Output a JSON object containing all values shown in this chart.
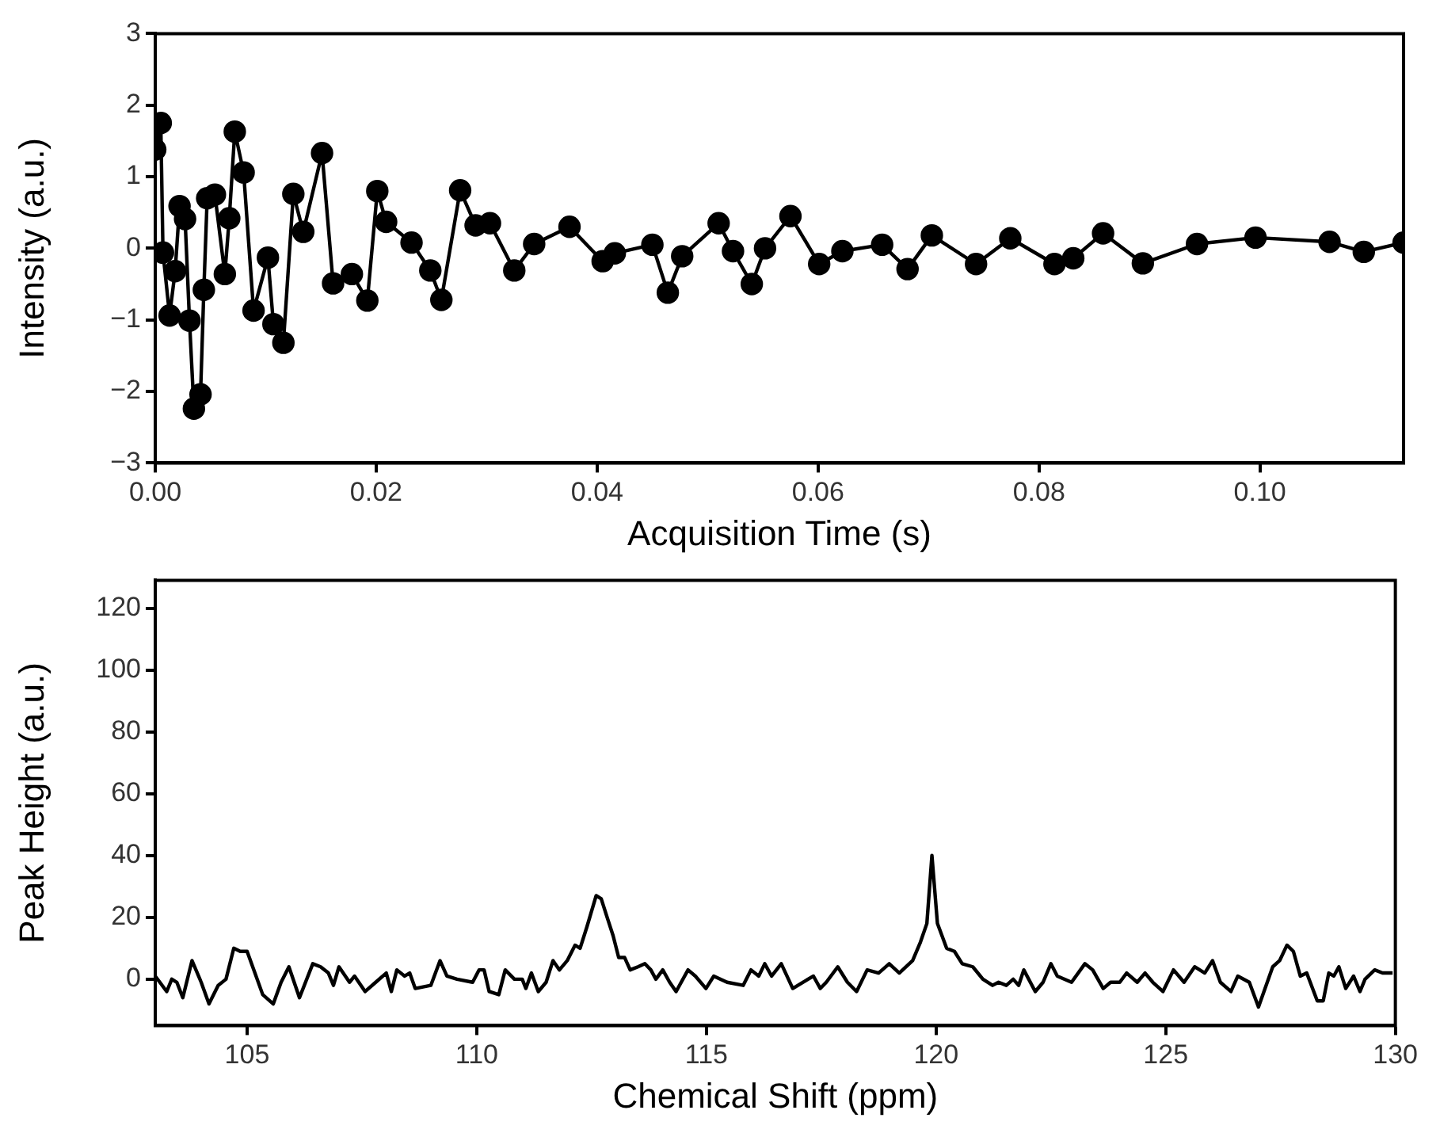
{
  "chart_data": [
    {
      "type": "line",
      "xlabel": "Acquisition Time (s)",
      "ylabel": "Intensity (a.u.)",
      "xlim": [
        0,
        0.113
      ],
      "ylim": [
        -3,
        3
      ],
      "xticks": [
        {
          "value": 0,
          "label": "0.00"
        },
        {
          "value": 0.02,
          "label": "0.02"
        },
        {
          "value": 0.04,
          "label": "0.04"
        },
        {
          "value": 0.06,
          "label": "0.06"
        },
        {
          "value": 0.08,
          "label": "0.08"
        },
        {
          "value": 0.1,
          "label": "0.10"
        }
      ],
      "yticks": [
        -3,
        -2,
        -1,
        0,
        1,
        2,
        3
      ],
      "grid": false,
      "legend": false,
      "marker": "circle",
      "line_style": "solid",
      "series": [
        {
          "color": "#000000",
          "x": [
            0,
            0.0005,
            0.0007,
            0.0013,
            0.0018,
            0.0022,
            0.0027,
            0.0031,
            0.0035,
            0.0041,
            0.0044,
            0.0047,
            0.0054,
            0.0063,
            0.0067,
            0.0072,
            0.008,
            0.0089,
            0.0102,
            0.0107,
            0.0116,
            0.0125,
            0.0134,
            0.0151,
            0.0161,
            0.0178,
            0.0192,
            0.0201,
            0.0209,
            0.0232,
            0.0249,
            0.0259,
            0.0276,
            0.029,
            0.0303,
            0.0325,
            0.0343,
            0.0375,
            0.0405,
            0.0416,
            0.045,
            0.0464,
            0.0477,
            0.051,
            0.0523,
            0.054,
            0.0552,
            0.0575,
            0.0601,
            0.0622,
            0.0658,
            0.0681,
            0.0703,
            0.0743,
            0.0774,
            0.0814,
            0.0831,
            0.0858,
            0.0894,
            0.0943,
            0.0996,
            0.1063,
            0.1094,
            0.113
          ],
          "values": [
            1.38,
            1.75,
            -0.06,
            -0.94,
            -0.32,
            0.59,
            0.41,
            -1.01,
            -2.24,
            -2.04,
            -0.58,
            0.7,
            0.75,
            -0.36,
            0.42,
            1.63,
            1.06,
            -0.87,
            -0.13,
            -1.06,
            -1.32,
            0.76,
            0.23,
            1.33,
            -0.49,
            -0.36,
            -0.73,
            0.8,
            0.37,
            0.08,
            -0.31,
            -0.72,
            0.81,
            0.32,
            0.35,
            -0.31,
            0.06,
            0.3,
            -0.18,
            -0.07,
            0.05,
            -0.62,
            -0.11,
            0.35,
            -0.04,
            -0.5,
            0,
            0.45,
            -0.22,
            -0.04,
            0.05,
            -0.29,
            0.18,
            -0.22,
            0.14,
            -0.22,
            -0.14,
            0.21,
            -0.21,
            0.06,
            0.15,
            0.09,
            -0.05,
            0.08
          ]
        }
      ]
    },
    {
      "type": "line",
      "xlabel": "Chemical Shift (ppm)",
      "ylabel": "Peak Height (a.u.)",
      "xlim": [
        103,
        130
      ],
      "ylim": [
        -15,
        129
      ],
      "xticks": [
        105,
        110,
        115,
        120,
        125,
        130
      ],
      "yticks": [
        0,
        20,
        40,
        60,
        80,
        100,
        120
      ],
      "grid": false,
      "legend": false,
      "marker": "none",
      "line_style": "solid",
      "series": [
        {
          "color": "#000000",
          "x": [
            103,
            103.1,
            103.25,
            103.36,
            103.47,
            103.6,
            103.8,
            104,
            104.17,
            104.37,
            104.54,
            104.71,
            104.85,
            105,
            105.17,
            105.34,
            105.57,
            105.74,
            105.91,
            106.14,
            106.43,
            106.6,
            106.77,
            106.88,
            107,
            107.23,
            107.34,
            107.57,
            107.8,
            108.03,
            108.14,
            108.26,
            108.43,
            108.54,
            108.66,
            109,
            109.2,
            109.35,
            109.57,
            109.91,
            110.05,
            110.16,
            110.27,
            110.48,
            110.62,
            110.82,
            110.99,
            111.07,
            111.19,
            111.34,
            111.51,
            111.66,
            111.8,
            111.97,
            112.14,
            112.25,
            112.4,
            112.6,
            112.71,
            112.86,
            112.97,
            113.09,
            113.22,
            113.34,
            113.51,
            113.66,
            113.79,
            113.9,
            114.05,
            114.2,
            114.34,
            114.6,
            114.76,
            114.99,
            115.16,
            115.45,
            115.8,
            115.97,
            116.14,
            116.27,
            116.42,
            116.63,
            116.88,
            117.1,
            117.33,
            117.48,
            117.61,
            117.86,
            118.07,
            118.27,
            118.5,
            118.75,
            118.98,
            119.2,
            119.49,
            119.66,
            119.8,
            119.91,
            120.03,
            120.23,
            120.4,
            120.57,
            120.8,
            121.02,
            121.23,
            121.36,
            121.53,
            121.68,
            121.8,
            121.91,
            122.16,
            122.33,
            122.5,
            122.64,
            122.95,
            123.24,
            123.41,
            123.64,
            123.8,
            124,
            124.15,
            124.38,
            124.55,
            124.72,
            124.94,
            125.17,
            125.4,
            125.63,
            125.85,
            126.02,
            126.19,
            126.42,
            126.57,
            126.82,
            127.02,
            127.33,
            127.48,
            127.64,
            127.78,
            127.93,
            128.07,
            128.3,
            128.43,
            128.55,
            128.66,
            128.77,
            128.92,
            129.09,
            129.23,
            129.34,
            129.55,
            129.72,
            129.94
          ],
          "values": [
            1,
            -1,
            -4,
            0,
            -1,
            -6,
            6,
            -1,
            -8,
            -2,
            0,
            10,
            9,
            9,
            2,
            -5,
            -8,
            -1,
            4,
            -6,
            5,
            4,
            2,
            -2,
            4,
            -1,
            1,
            -4,
            -1,
            2,
            -4,
            3,
            1,
            2,
            -3,
            -2,
            6,
            1,
            0,
            -1,
            3,
            3,
            -4,
            -5,
            3,
            0,
            0,
            -3,
            2,
            -4,
            -1,
            6,
            3,
            6,
            11,
            10,
            17,
            27,
            26,
            19,
            14,
            7,
            7,
            3,
            4,
            5,
            3,
            0,
            3,
            -1,
            -4,
            3,
            1,
            -3,
            1,
            -1,
            -2,
            3,
            1,
            5,
            1,
            5,
            -3,
            -1,
            1,
            -3,
            -1,
            4,
            -1,
            -4,
            3,
            2,
            5,
            2,
            6,
            12,
            18,
            40,
            18,
            10,
            9,
            5,
            4,
            0,
            -2,
            -1,
            -2,
            0,
            -2,
            3,
            -4,
            -1,
            5,
            1,
            -1,
            5,
            3,
            -3,
            -1,
            -1,
            2,
            -1,
            2,
            -1,
            -4,
            3,
            -1,
            4,
            2,
            6,
            -1,
            -4,
            1,
            -1,
            -9,
            4,
            6,
            11,
            9,
            1,
            2,
            -7,
            -7,
            2,
            1,
            4,
            -3,
            1,
            -4,
            0,
            3,
            2,
            2
          ]
        }
      ]
    }
  ]
}
